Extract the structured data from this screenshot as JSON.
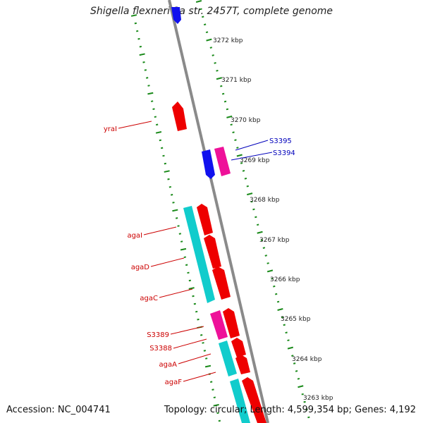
{
  "title": "Shigella flexneri 2a str. 2457T, complete genome",
  "footer": {
    "accession": "Accession: NC_004741",
    "topology": "Topology: circular; Length: 4,599,354 bp; Genes: 4,192"
  },
  "colors": {
    "backbone": "#8a8a8a",
    "ticks": "#1a8a1a",
    "cds_forward": "#ee0000",
    "cds_reverse": "#1111ee",
    "cds_cyan": "#11cccc",
    "cds_magenta": "#ee1199",
    "label_red": "#cc0000",
    "label_blue": "#0000bb"
  },
  "ticks": [
    {
      "label": "3272 kbp"
    },
    {
      "label": "3271 kbp"
    },
    {
      "label": "3270 kbp"
    },
    {
      "label": "3269 kbp"
    },
    {
      "label": "3268 kbp"
    },
    {
      "label": "3267 kbp"
    },
    {
      "label": "3266 kbp"
    },
    {
      "label": "3265 kbp"
    },
    {
      "label": "3264 kbp"
    },
    {
      "label": "3263 kbp"
    }
  ],
  "gene_labels": [
    {
      "text": "S3395",
      "color": "blue"
    },
    {
      "text": "S3394",
      "color": "blue"
    },
    {
      "text": "yraI",
      "color": "red"
    },
    {
      "text": "agaI",
      "color": "red"
    },
    {
      "text": "agaD",
      "color": "red"
    },
    {
      "text": "agaC",
      "color": "red"
    },
    {
      "text": "S3389",
      "color": "red"
    },
    {
      "text": "S3388",
      "color": "red"
    },
    {
      "text": "agaA",
      "color": "red"
    },
    {
      "text": "agaF",
      "color": "red"
    }
  ]
}
